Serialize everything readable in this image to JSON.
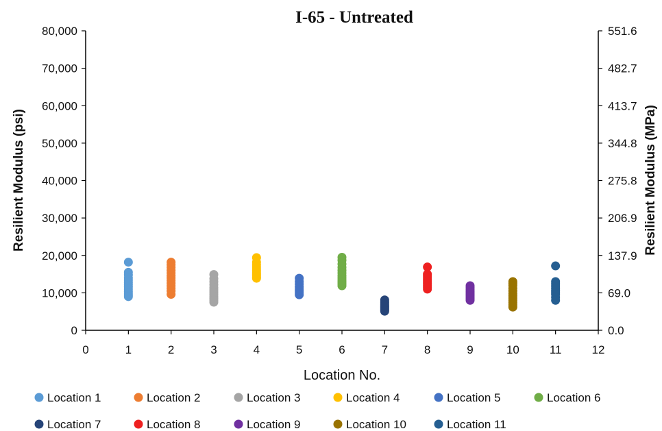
{
  "chart_data": {
    "type": "scatter",
    "title": "I-65 - Untreated",
    "xlabel": "Location No.",
    "ylabel": "Resilient Modulus (psi)",
    "y2label": "Resilient Modulus (MPa)",
    "xlim": [
      0,
      12
    ],
    "ylim": [
      0,
      80000
    ],
    "x_ticks": [
      "0",
      "1",
      "2",
      "3",
      "4",
      "5",
      "6",
      "7",
      "8",
      "9",
      "10",
      "11",
      "12"
    ],
    "y_ticks": [
      "0",
      "10,000",
      "20,000",
      "30,000",
      "40,000",
      "50,000",
      "60,000",
      "70,000",
      "80,000"
    ],
    "y2_ticks": [
      "0.0",
      "69.0",
      "137.9",
      "206.9",
      "275.8",
      "344.8",
      "413.7",
      "482.7",
      "551.6"
    ],
    "grid": false,
    "legend_position": "bottom",
    "series": [
      {
        "name": "Location 1",
        "color": "#5B9BD5",
        "x": [
          1,
          1,
          1,
          1,
          1,
          1,
          1,
          1,
          1,
          1,
          1,
          1,
          1
        ],
        "y": [
          18200,
          15500,
          14800,
          14000,
          13400,
          12800,
          12200,
          11600,
          11000,
          10400,
          9900,
          9400,
          9000
        ]
      },
      {
        "name": "Location 2",
        "color": "#ED7D31",
        "x": [
          2,
          2,
          2,
          2,
          2,
          2,
          2,
          2,
          2,
          2,
          2,
          2,
          2
        ],
        "y": [
          18200,
          17500,
          16800,
          16000,
          15300,
          14600,
          14000,
          13300,
          12600,
          11900,
          11200,
          10500,
          9600
        ]
      },
      {
        "name": "Location 3",
        "color": "#A5A5A5",
        "x": [
          3,
          3,
          3,
          3,
          3,
          3,
          3,
          3,
          3,
          3,
          3,
          3
        ],
        "y": [
          14900,
          13800,
          13000,
          12200,
          11400,
          10800,
          10200,
          9600,
          9000,
          8500,
          8000,
          7500
        ]
      },
      {
        "name": "Location 4",
        "color": "#FFC000",
        "x": [
          4,
          4,
          4,
          4,
          4,
          4,
          4,
          4,
          4,
          4,
          4
        ],
        "y": [
          19400,
          18200,
          17500,
          16900,
          16400,
          15900,
          15400,
          15000,
          14600,
          14200,
          13900
        ]
      },
      {
        "name": "Location 5",
        "color": "#4472C4",
        "x": [
          5,
          5,
          5,
          5,
          5,
          5,
          5,
          5
        ],
        "y": [
          13900,
          13000,
          12300,
          11600,
          11000,
          10500,
          10000,
          9500
        ]
      },
      {
        "name": "Location 6",
        "color": "#70AD47",
        "x": [
          6,
          6,
          6,
          6,
          6,
          6,
          6,
          6,
          6,
          6,
          6,
          6
        ],
        "y": [
          19500,
          18700,
          17700,
          16800,
          16000,
          15300,
          14600,
          14000,
          13400,
          12900,
          12400,
          11900
        ]
      },
      {
        "name": "Location 7",
        "color": "#264478",
        "x": [
          7,
          7,
          7,
          7,
          7,
          7,
          7,
          7,
          7,
          7
        ],
        "y": [
          8100,
          7700,
          7300,
          6900,
          6600,
          6300,
          6000,
          5700,
          5400,
          5100
        ]
      },
      {
        "name": "Location 8",
        "color": "#EE2020",
        "x": [
          8,
          8,
          8,
          8,
          8,
          8,
          8,
          8,
          8,
          8
        ],
        "y": [
          16900,
          15000,
          14500,
          14000,
          13500,
          13000,
          12500,
          12000,
          11500,
          11000
        ]
      },
      {
        "name": "Location 9",
        "color": "#7030A0",
        "x": [
          9,
          9,
          9,
          9,
          9,
          9,
          9,
          9,
          9,
          9
        ],
        "y": [
          11900,
          11400,
          10900,
          10400,
          10000,
          9600,
          9200,
          8800,
          8400,
          8000
        ]
      },
      {
        "name": "Location 10",
        "color": "#997300",
        "x": [
          10,
          10,
          10,
          10,
          10,
          10,
          10,
          10,
          10,
          10,
          10,
          10
        ],
        "y": [
          13000,
          12500,
          12000,
          11200,
          10500,
          9800,
          9200,
          8600,
          8000,
          7400,
          6800,
          6200
        ]
      },
      {
        "name": "Location 11",
        "color": "#255E91",
        "x": [
          11,
          11,
          11,
          11,
          11,
          11,
          11,
          11,
          11,
          11
        ],
        "y": [
          17200,
          13000,
          12400,
          11800,
          11200,
          10600,
          10100,
          9600,
          8800,
          8000
        ]
      }
    ]
  }
}
